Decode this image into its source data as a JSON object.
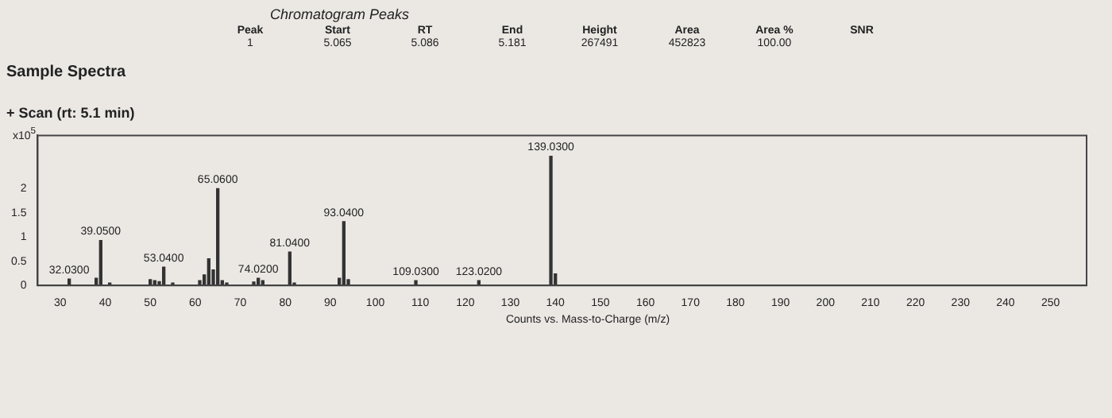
{
  "chart_data": {
    "type": "bar",
    "title": "Sample Spectra",
    "subtitle": "+ Scan (rt: 5.1 min)",
    "xlabel": "Counts vs. Mass-to-Charge (m/z)",
    "ylabel": "x10$^{5}$",
    "x": [
      32,
      38,
      39,
      41,
      50,
      51,
      52,
      53,
      55,
      61,
      62,
      63,
      64,
      65,
      66,
      67,
      73,
      74,
      75,
      81,
      82,
      92,
      93,
      94,
      109,
      123,
      139,
      140
    ],
    "values": [
      0.13,
      0.15,
      0.93,
      0.05,
      0.12,
      0.1,
      0.08,
      0.38,
      0.05,
      0.1,
      0.22,
      0.55,
      0.32,
      2.0,
      0.1,
      0.05,
      0.07,
      0.15,
      0.1,
      0.69,
      0.05,
      0.15,
      1.32,
      0.12,
      0.1,
      0.1,
      2.67,
      0.24
    ],
    "color": "#333333",
    "xlim": [
      25,
      258
    ],
    "xticks": [
      30,
      40,
      50,
      60,
      70,
      80,
      90,
      100,
      110,
      120,
      130,
      140,
      150,
      160,
      170,
      180,
      190,
      200,
      210,
      220,
      230,
      240,
      250
    ],
    "ylim": [
      0,
      3.1
    ],
    "yticks": [
      0,
      0.5,
      1,
      1.5,
      2
    ],
    "grid": false,
    "legend": false,
    "annotations": [
      "Chromatogram Peaks",
      "Peak",
      "Start",
      "RT",
      "End",
      "Height",
      "Area",
      "Area %",
      "SNR",
      "1",
      "5.065",
      "5.086",
      "5.181",
      "267491",
      "452823",
      "100.00",
      {
        "text": "32.0300",
        "x": 32,
        "y": 0.13
      },
      {
        "text": "39.0500",
        "x": 39,
        "y": 0.93
      },
      {
        "text": "53.0400",
        "x": 53,
        "y": 0.38
      },
      {
        "text": "65.0600",
        "x": 65,
        "y": 2.0
      },
      {
        "text": "74.0200",
        "x": 74,
        "y": 0.15
      },
      {
        "text": "81.0400",
        "x": 81,
        "y": 0.69
      },
      {
        "text": "93.0400",
        "x": 93,
        "y": 1.32
      },
      {
        "text": "109.0300",
        "x": 109,
        "y": 0.1
      },
      {
        "text": "123.0200",
        "x": 123,
        "y": 0.1
      },
      {
        "text": "139.0300",
        "x": 139,
        "y": 2.67
      }
    ]
  }
}
